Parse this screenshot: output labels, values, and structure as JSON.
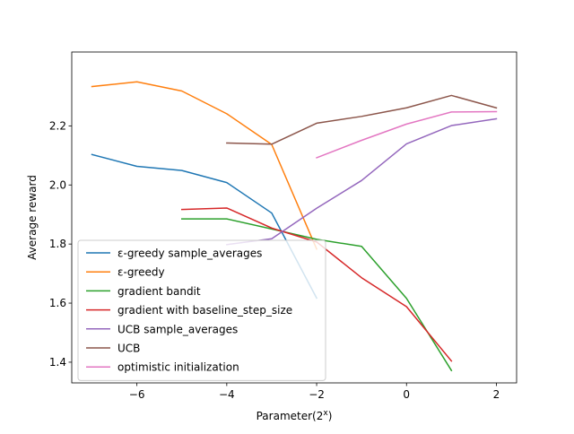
{
  "chart_data": {
    "type": "line",
    "title": "",
    "xlabel_prefix": "Parameter(2",
    "xlabel_sup": "x",
    "xlabel_suffix": ")",
    "ylabel": "Average reward",
    "xlim": [
      -7.45,
      2.45
    ],
    "ylim": [
      1.33,
      2.45
    ],
    "xticks": [
      -6,
      -4,
      -2,
      0,
      2
    ],
    "xtick_labels": [
      "−6",
      "−4",
      "−2",
      "0",
      "2"
    ],
    "yticks": [
      1.4,
      1.6,
      1.8,
      2.0,
      2.2
    ],
    "ytick_labels": [
      "1.4",
      "1.6",
      "1.8",
      "2.0",
      "2.2"
    ],
    "grid": false,
    "legend_position": "lower-left",
    "series": [
      {
        "name": "ε-greedy sample_averages",
        "color": "#1f77b4",
        "x": [
          -7,
          -6,
          -5,
          -4,
          -3,
          -2
        ],
        "y": [
          2.103,
          2.063,
          2.049,
          2.008,
          1.905,
          1.617
        ]
      },
      {
        "name": "ε-greedy",
        "color": "#ff7f0e",
        "x": [
          -7,
          -6,
          -5,
          -4,
          -3,
          -2
        ],
        "y": [
          2.333,
          2.349,
          2.318,
          2.241,
          2.137,
          1.783
        ]
      },
      {
        "name": "gradient bandit",
        "color": "#2ca02c",
        "x": [
          -5,
          -4,
          -3,
          -2,
          -1,
          0,
          1
        ],
        "y": [
          1.885,
          1.885,
          1.851,
          1.816,
          1.792,
          1.616,
          1.372
        ]
      },
      {
        "name": "gradient with baseline_step_size",
        "color": "#d62728",
        "x": [
          -5,
          -4,
          -3,
          -2,
          -1,
          0,
          1
        ],
        "y": [
          1.917,
          1.922,
          1.854,
          1.807,
          1.686,
          1.588,
          1.404
        ]
      },
      {
        "name": "UCB sample_averages",
        "color": "#9467bd",
        "x": [
          -4,
          -3,
          -2,
          -1,
          0,
          1,
          2
        ],
        "y": [
          1.798,
          1.818,
          1.921,
          2.015,
          2.139,
          2.201,
          2.224
        ]
      },
      {
        "name": "UCB",
        "color": "#8c564b",
        "x": [
          -4,
          -3,
          -2,
          -1,
          0,
          1,
          2
        ],
        "y": [
          2.142,
          2.138,
          2.209,
          2.232,
          2.261,
          2.303,
          2.261
        ]
      },
      {
        "name": "optimistic initialization",
        "color": "#e377c2",
        "x": [
          -2,
          -1,
          0,
          1,
          2
        ],
        "y": [
          2.092,
          2.151,
          2.206,
          2.247,
          2.248
        ]
      }
    ]
  }
}
